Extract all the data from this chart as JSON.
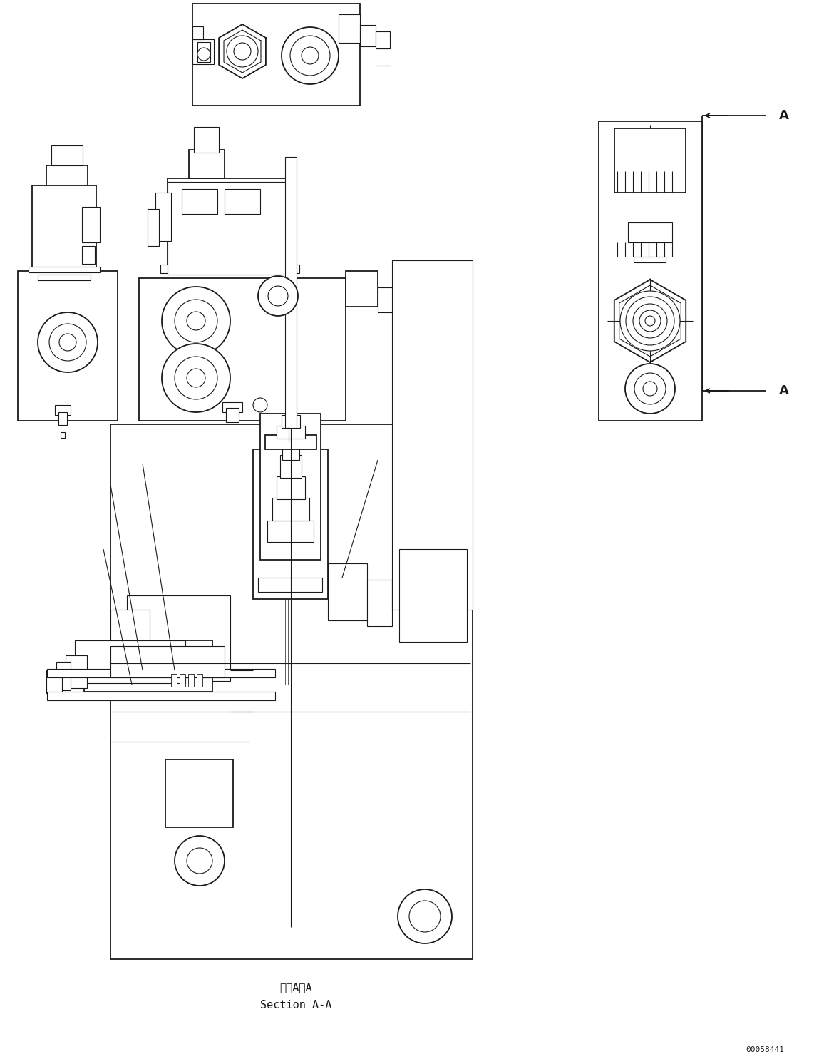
{
  "bg_color": "#ffffff",
  "line_color": "#1a1a1a",
  "lw": 1.3,
  "thin_lw": 0.8,
  "thick_lw": 2.0,
  "fig_width": 11.49,
  "fig_height": 14.92,
  "label_section_aa_jp": "断面A－A",
  "label_section_aa_en": "Section A-A",
  "label_A": "A",
  "part_number": "00058441",
  "font_size_label": 10,
  "font_size_partnumber": 8
}
